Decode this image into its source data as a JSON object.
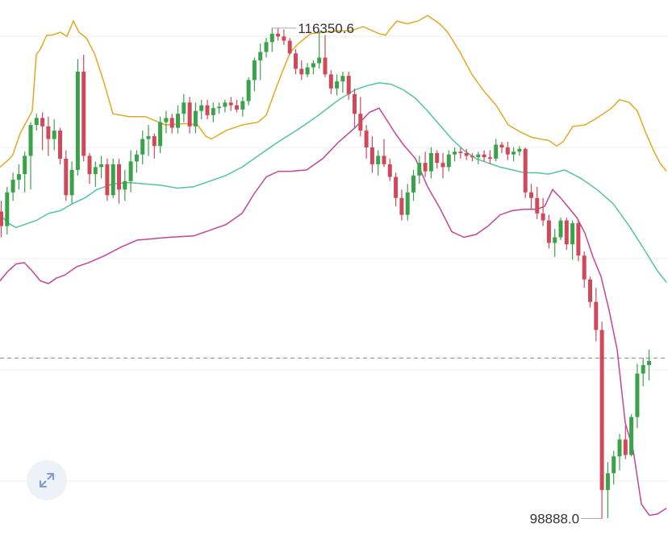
{
  "chart_data": {
    "type": "candlestick",
    "annotations": {
      "high_label": "116350.6",
      "low_label": "98888.0"
    },
    "ylim": [
      98300,
      117350
    ],
    "reference_line": 104600,
    "colors": {
      "up": "#3aa34a",
      "down": "#d0495a",
      "upper_band": "#e2a923",
      "middle_band": "#52c4a3",
      "lower_band": "#c4449a",
      "reference": "#888888",
      "grid": "#eeeeee"
    },
    "candles": [
      [
        109820,
        110200,
        108900,
        109300
      ],
      [
        109300,
        110700,
        109000,
        110500
      ],
      [
        110500,
        111200,
        110200,
        110950
      ],
      [
        110950,
        111500,
        110600,
        111150
      ],
      [
        111150,
        111950,
        110500,
        111800
      ],
      [
        111800,
        113000,
        110600,
        112900
      ],
      [
        112900,
        113300,
        112700,
        113150
      ],
      [
        113150,
        113350,
        112000,
        112850
      ],
      [
        112850,
        113200,
        111800,
        112400
      ],
      [
        112400,
        113100,
        112000,
        112700
      ],
      [
        112700,
        112800,
        111500,
        111700
      ],
      [
        111700,
        112000,
        110200,
        110400
      ],
      [
        110400,
        111600,
        110100,
        111300
      ],
      [
        111300,
        115250,
        111100,
        114800
      ],
      [
        114800,
        115400,
        111600,
        111800
      ],
      [
        111800,
        111900,
        110800,
        111150
      ],
      [
        111150,
        111600,
        110700,
        111400
      ],
      [
        111400,
        111800,
        111000,
        111500
      ],
      [
        111500,
        111700,
        110200,
        110400
      ],
      [
        110400,
        111700,
        110300,
        111500
      ],
      [
        111500,
        111700,
        110100,
        110600
      ],
      [
        110600,
        111300,
        110200,
        110900
      ],
      [
        110900,
        112000,
        110500,
        111600
      ],
      [
        111600,
        112000,
        111200,
        111850
      ],
      [
        111850,
        112700,
        111500,
        112400
      ],
      [
        112400,
        112900,
        111800,
        112500
      ],
      [
        112500,
        112600,
        111700,
        112150
      ],
      [
        112150,
        113200,
        111900,
        113000
      ],
      [
        113000,
        113400,
        112600,
        113150
      ],
      [
        113150,
        113300,
        112600,
        112800
      ],
      [
        112800,
        113600,
        112600,
        113300
      ],
      [
        113300,
        114000,
        113000,
        113700
      ],
      [
        113700,
        113900,
        112600,
        112850
      ],
      [
        112850,
        113700,
        112600,
        113400
      ],
      [
        113400,
        113800,
        113100,
        113600
      ],
      [
        113600,
        113800,
        113100,
        113250
      ],
      [
        113250,
        113700,
        113000,
        113500
      ],
      [
        113500,
        113700,
        113300,
        113550
      ],
      [
        113550,
        113800,
        113350,
        113700
      ],
      [
        113700,
        113900,
        113400,
        113600
      ],
      [
        113600,
        113800,
        113350,
        113450
      ],
      [
        113450,
        113900,
        113200,
        113750
      ],
      [
        113750,
        114600,
        113600,
        114500
      ],
      [
        114500,
        115300,
        114100,
        115200
      ],
      [
        115200,
        115800,
        114500,
        115500
      ],
      [
        115500,
        116000,
        115300,
        115850
      ],
      [
        115850,
        116350,
        115500,
        116150
      ],
      [
        116150,
        116350,
        115900,
        116050
      ],
      [
        116050,
        116300,
        115750,
        115900
      ],
      [
        115900,
        116000,
        115400,
        115450
      ],
      [
        115450,
        115600,
        114700,
        114900
      ],
      [
        114900,
        115200,
        114500,
        114700
      ],
      [
        114700,
        115100,
        114600,
        114950
      ],
      [
        114950,
        115200,
        114700,
        115100
      ],
      [
        115100,
        116250,
        114900,
        115300
      ],
      [
        115300,
        116100,
        114600,
        114700
      ],
      [
        114700,
        114850,
        114000,
        114200
      ],
      [
        114200,
        114700,
        113950,
        114450
      ],
      [
        114450,
        114800,
        114050,
        114650
      ],
      [
        114650,
        114800,
        113800,
        114000
      ],
      [
        114000,
        114200,
        112800,
        113300
      ],
      [
        113300,
        113900,
        112500,
        112700
      ],
      [
        112700,
        112900,
        111700,
        112100
      ],
      [
        112100,
        112500,
        111200,
        111500
      ],
      [
        111500,
        112000,
        111100,
        111800
      ],
      [
        111800,
        112400,
        111400,
        111500
      ],
      [
        111500,
        111700,
        110900,
        111050
      ],
      [
        111050,
        111200,
        110000,
        110300
      ],
      [
        110300,
        110600,
        109500,
        109700
      ],
      [
        109700,
        110800,
        109500,
        110500
      ],
      [
        110500,
        111300,
        110200,
        111100
      ],
      [
        111100,
        111800,
        110800,
        111550
      ],
      [
        111550,
        111950,
        111050,
        111250
      ],
      [
        111250,
        112100,
        111000,
        111900
      ],
      [
        111900,
        112000,
        111350,
        111550
      ],
      [
        111550,
        111900,
        111000,
        111400
      ],
      [
        111400,
        112000,
        111250,
        111850
      ],
      [
        111850,
        112100,
        111600,
        111950
      ],
      [
        111950,
        112100,
        111700,
        111900
      ],
      [
        111900,
        112050,
        111650,
        111800
      ],
      [
        111800,
        111900,
        111600,
        111750
      ],
      [
        111750,
        111950,
        111500,
        111850
      ],
      [
        111850,
        112000,
        111600,
        111750
      ],
      [
        111750,
        112000,
        111500,
        111700
      ],
      [
        111700,
        112400,
        111600,
        112200
      ],
      [
        112200,
        112300,
        111900,
        112100
      ],
      [
        112100,
        112300,
        111650,
        111850
      ],
      [
        111850,
        112100,
        111600,
        111950
      ],
      [
        111950,
        112150,
        111800,
        112050
      ],
      [
        112050,
        112100,
        110300,
        110500
      ],
      [
        110500,
        110800,
        109900,
        110300
      ],
      [
        110300,
        110700,
        109550,
        109750
      ],
      [
        109750,
        110300,
        109300,
        109500
      ],
      [
        109500,
        109700,
        108500,
        108700
      ],
      [
        108700,
        109200,
        108200,
        108900
      ],
      [
        108900,
        109600,
        108800,
        109500
      ],
      [
        109500,
        109600,
        108450,
        108650
      ],
      [
        108650,
        109500,
        108100,
        109400
      ],
      [
        109400,
        109500,
        108050,
        108250
      ],
      [
        108250,
        108400,
        107100,
        107400
      ],
      [
        107400,
        107500,
        106400,
        106600
      ],
      [
        106600,
        107100,
        105200,
        105600
      ],
      [
        105600,
        105900,
        98888,
        99900
      ],
      [
        99900,
        100900,
        98900,
        100500
      ],
      [
        100500,
        101300,
        100100,
        101100
      ],
      [
        101100,
        101900,
        100600,
        101700
      ],
      [
        101700,
        102200,
        101000,
        101150
      ],
      [
        101150,
        102600,
        101100,
        102500
      ],
      [
        102500,
        104400,
        102100,
        104050
      ],
      [
        104050,
        104600,
        103600,
        104350
      ],
      [
        104350,
        104900,
        103800,
        104500
      ]
    ],
    "upper_band": [
      [
        0,
        111400
      ],
      [
        12,
        111700
      ],
      [
        16,
        111850
      ],
      [
        25,
        112600
      ],
      [
        40,
        113400
      ],
      [
        45,
        115400
      ],
      [
        50,
        115600
      ],
      [
        58,
        116100
      ],
      [
        64,
        116100
      ],
      [
        75,
        116200
      ],
      [
        83,
        116050
      ],
      [
        91,
        116600
      ],
      [
        98,
        116200
      ],
      [
        107,
        116000
      ],
      [
        117,
        115450
      ],
      [
        128,
        114500
      ],
      [
        140,
        113300
      ],
      [
        160,
        113200
      ],
      [
        180,
        113200
      ],
      [
        205,
        112900
      ],
      [
        230,
        112950
      ],
      [
        245,
        112900
      ],
      [
        255,
        112500
      ],
      [
        262,
        112400
      ],
      [
        280,
        112700
      ],
      [
        300,
        112900
      ],
      [
        320,
        113000
      ],
      [
        330,
        113250
      ],
      [
        342,
        114200
      ],
      [
        350,
        114800
      ],
      [
        355,
        115150
      ],
      [
        360,
        115500
      ],
      [
        370,
        115800
      ],
      [
        385,
        116150
      ],
      [
        400,
        116200
      ],
      [
        420,
        116250
      ],
      [
        435,
        116250
      ],
      [
        450,
        116400
      ],
      [
        470,
        116150
      ],
      [
        478,
        116100
      ],
      [
        483,
        116300
      ],
      [
        492,
        116600
      ],
      [
        505,
        116500
      ],
      [
        518,
        116600
      ],
      [
        530,
        116800
      ],
      [
        545,
        116500
      ],
      [
        555,
        116200
      ],
      [
        570,
        115500
      ],
      [
        585,
        114700
      ],
      [
        600,
        114100
      ],
      [
        615,
        113600
      ],
      [
        630,
        112900
      ],
      [
        645,
        112650
      ],
      [
        660,
        112450
      ],
      [
        680,
        112350
      ],
      [
        690,
        112150
      ],
      [
        698,
        112300
      ],
      [
        710,
        112850
      ],
      [
        725,
        112900
      ],
      [
        740,
        113150
      ],
      [
        758,
        113500
      ],
      [
        768,
        113800
      ],
      [
        780,
        113700
      ],
      [
        790,
        113400
      ],
      [
        800,
        112650
      ],
      [
        810,
        112000
      ],
      [
        818,
        111550
      ],
      [
        826,
        111250
      ]
    ],
    "middle_band": [
      [
        0,
        109720
      ],
      [
        10,
        109400
      ],
      [
        20,
        109250
      ],
      [
        30,
        109350
      ],
      [
        45,
        109500
      ],
      [
        60,
        109750
      ],
      [
        75,
        109850
      ],
      [
        90,
        110100
      ],
      [
        105,
        110300
      ],
      [
        120,
        110600
      ],
      [
        140,
        110800
      ],
      [
        160,
        110850
      ],
      [
        180,
        110800
      ],
      [
        200,
        110750
      ],
      [
        220,
        110650
      ],
      [
        240,
        110700
      ],
      [
        260,
        110900
      ],
      [
        280,
        111100
      ],
      [
        300,
        111400
      ],
      [
        320,
        111800
      ],
      [
        345,
        112300
      ],
      [
        370,
        112750
      ],
      [
        395,
        113250
      ],
      [
        420,
        113800
      ],
      [
        440,
        114150
      ],
      [
        455,
        114300
      ],
      [
        470,
        114400
      ],
      [
        485,
        114350
      ],
      [
        500,
        114150
      ],
      [
        515,
        113850
      ],
      [
        530,
        113400
      ],
      [
        545,
        112900
      ],
      [
        560,
        112400
      ],
      [
        575,
        112000
      ],
      [
        590,
        111700
      ],
      [
        605,
        111550
      ],
      [
        620,
        111400
      ],
      [
        635,
        111300
      ],
      [
        650,
        111200
      ],
      [
        665,
        111200
      ],
      [
        680,
        111150
      ],
      [
        700,
        111300
      ],
      [
        720,
        111000
      ],
      [
        740,
        110600
      ],
      [
        760,
        110100
      ],
      [
        780,
        109300
      ],
      [
        800,
        108400
      ],
      [
        815,
        107700
      ],
      [
        826,
        107300
      ]
    ],
    "lower_band": [
      [
        0,
        107350
      ],
      [
        10,
        107700
      ],
      [
        20,
        107950
      ],
      [
        30,
        108000
      ],
      [
        40,
        107700
      ],
      [
        50,
        107350
      ],
      [
        60,
        107250
      ],
      [
        70,
        107450
      ],
      [
        80,
        107550
      ],
      [
        95,
        107850
      ],
      [
        110,
        108000
      ],
      [
        130,
        108250
      ],
      [
        150,
        108550
      ],
      [
        170,
        108800
      ],
      [
        190,
        108850
      ],
      [
        210,
        108900
      ],
      [
        240,
        108950
      ],
      [
        260,
        109150
      ],
      [
        280,
        109350
      ],
      [
        300,
        109750
      ],
      [
        315,
        110450
      ],
      [
        330,
        111050
      ],
      [
        345,
        111250
      ],
      [
        360,
        111250
      ],
      [
        380,
        111300
      ],
      [
        400,
        111700
      ],
      [
        420,
        112300
      ],
      [
        440,
        112800
      ],
      [
        458,
        113350
      ],
      [
        470,
        113500
      ],
      [
        480,
        113050
      ],
      [
        490,
        112600
      ],
      [
        500,
        112200
      ],
      [
        515,
        111700
      ],
      [
        530,
        110700
      ],
      [
        545,
        109950
      ],
      [
        560,
        109100
      ],
      [
        575,
        108900
      ],
      [
        590,
        109000
      ],
      [
        605,
        109300
      ],
      [
        620,
        109700
      ],
      [
        635,
        109850
      ],
      [
        650,
        109900
      ],
      [
        665,
        109900
      ],
      [
        675,
        110000
      ],
      [
        685,
        110600
      ],
      [
        695,
        110300
      ],
      [
        705,
        109950
      ],
      [
        715,
        109600
      ],
      [
        725,
        109050
      ],
      [
        735,
        108200
      ],
      [
        745,
        107500
      ],
      [
        755,
        106300
      ],
      [
        765,
        104900
      ],
      [
        775,
        102300
      ],
      [
        785,
        101300
      ],
      [
        795,
        99400
      ],
      [
        805,
        99000
      ],
      [
        815,
        99050
      ],
      [
        826,
        99250
      ]
    ]
  }
}
